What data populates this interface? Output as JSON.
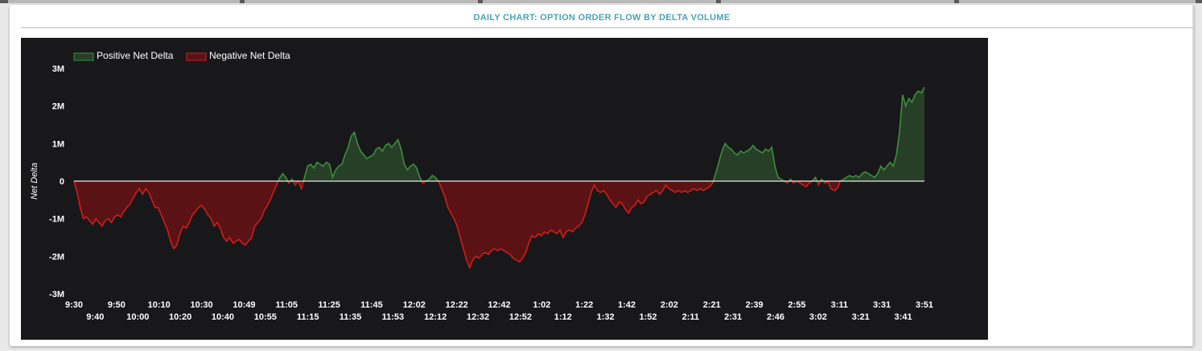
{
  "panel": {
    "title": "DAILY CHART: OPTION ORDER FLOW BY DELTA VOLUME"
  },
  "colors": {
    "background": "#18181a",
    "positive_fill": "#263f26",
    "positive_line": "#3d8f3d",
    "negative_fill": "#5a1214",
    "negative_line": "#d21c1c",
    "zero_line": "#e8e8e8",
    "text": "#ffffff",
    "title": "#49a3b5"
  },
  "chart_data": {
    "type": "area",
    "xlabel": "",
    "ylabel": "Net Delta",
    "ylim": [
      -3000000,
      3000000
    ],
    "yticks": [
      3000000,
      2000000,
      1000000,
      0,
      -1000000,
      -2000000,
      -3000000
    ],
    "ytick_labels": [
      "3M",
      "2M",
      "1M",
      "0",
      "-1M",
      "-2M",
      "-3M"
    ],
    "grid": false,
    "legend_position": "top-left",
    "legend": [
      "Positive Net Delta",
      "Negative Net Delta"
    ],
    "xtick_labels_row1": [
      "9:30",
      "9:50",
      "10:10",
      "10:30",
      "10:49",
      "11:05",
      "11:25",
      "11:45",
      "12:02",
      "12:22",
      "12:42",
      "1:02",
      "1:22",
      "1:42",
      "2:02",
      "2:21",
      "2:39",
      "2:55",
      "3:11",
      "3:31",
      "3:51"
    ],
    "xtick_labels_row2": [
      "9:40",
      "10:00",
      "10:20",
      "10:40",
      "10:55",
      "11:15",
      "11:35",
      "11:53",
      "12:12",
      "12:32",
      "12:52",
      "1:12",
      "1:32",
      "1:52",
      "2:11",
      "2:31",
      "2:46",
      "3:02",
      "3:21",
      "3:41"
    ],
    "series": [
      {
        "name": "Net Delta",
        "values": [
          0,
          -300000,
          -700000,
          -1000000,
          -950000,
          -1050000,
          -1150000,
          -1000000,
          -1100000,
          -1200000,
          -1050000,
          -1000000,
          -1100000,
          -950000,
          -900000,
          -950000,
          -800000,
          -700000,
          -600000,
          -450000,
          -300000,
          -200000,
          -350000,
          -200000,
          -300000,
          -500000,
          -700000,
          -700000,
          -900000,
          -1100000,
          -1300000,
          -1600000,
          -1800000,
          -1700000,
          -1400000,
          -1200000,
          -1250000,
          -1100000,
          -900000,
          -800000,
          -700000,
          -650000,
          -750000,
          -900000,
          -1000000,
          -1200000,
          -1100000,
          -1250000,
          -1500000,
          -1600000,
          -1500000,
          -1650000,
          -1600000,
          -1550000,
          -1650000,
          -1700000,
          -1600000,
          -1500000,
          -1200000,
          -1100000,
          -1000000,
          -800000,
          -650000,
          -500000,
          -300000,
          -100000,
          80000,
          200000,
          100000,
          -50000,
          50000,
          -100000,
          0,
          -200000,
          100000,
          400000,
          450000,
          350000,
          500000,
          450000,
          400000,
          500000,
          450000,
          100000,
          300000,
          400000,
          450000,
          700000,
          900000,
          1200000,
          1300000,
          1000000,
          800000,
          700000,
          600000,
          650000,
          700000,
          850000,
          900000,
          800000,
          950000,
          1000000,
          900000,
          1000000,
          1100000,
          850000,
          450000,
          300000,
          400000,
          450000,
          350000,
          100000,
          -50000,
          0,
          50000,
          150000,
          100000,
          0,
          -200000,
          -400000,
          -700000,
          -850000,
          -1000000,
          -1200000,
          -1500000,
          -1800000,
          -2100000,
          -2300000,
          -2100000,
          -2000000,
          -2050000,
          -1950000,
          -1900000,
          -1950000,
          -1850000,
          -1800000,
          -1850000,
          -1800000,
          -1850000,
          -1900000,
          -1950000,
          -2050000,
          -2100000,
          -2150000,
          -2050000,
          -1900000,
          -1650000,
          -1450000,
          -1500000,
          -1400000,
          -1450000,
          -1350000,
          -1400000,
          -1300000,
          -1350000,
          -1400000,
          -1300000,
          -1500000,
          -1350000,
          -1300000,
          -1350000,
          -1250000,
          -1200000,
          -1100000,
          -900000,
          -600000,
          -300000,
          -100000,
          -250000,
          -300000,
          -250000,
          -350000,
          -500000,
          -600000,
          -700000,
          -550000,
          -600000,
          -750000,
          -850000,
          -700000,
          -650000,
          -500000,
          -600000,
          -550000,
          -400000,
          -350000,
          -300000,
          -250000,
          -350000,
          -250000,
          -100000,
          -200000,
          -250000,
          -300000,
          -250000,
          -300000,
          -250000,
          -300000,
          -250000,
          -200000,
          -250000,
          -200000,
          -250000,
          -200000,
          -150000,
          -50000,
          200000,
          500000,
          800000,
          1000000,
          900000,
          850000,
          750000,
          700000,
          800000,
          750000,
          800000,
          850000,
          950000,
          850000,
          800000,
          750000,
          850000,
          800000,
          900000,
          400000,
          100000,
          50000,
          0,
          -50000,
          50000,
          -50000,
          0,
          -50000,
          -100000,
          -150000,
          -50000,
          0,
          100000,
          -100000,
          50000,
          -50000,
          0,
          -200000,
          -250000,
          -200000,
          0,
          50000,
          100000,
          150000,
          100000,
          150000,
          100000,
          200000,
          250000,
          200000,
          150000,
          100000,
          200000,
          400000,
          300000,
          400000,
          500000,
          400000,
          700000,
          1300000,
          2300000,
          2000000,
          2200000,
          2100000,
          2300000,
          2400000,
          2350000,
          2500000
        ]
      }
    ]
  }
}
